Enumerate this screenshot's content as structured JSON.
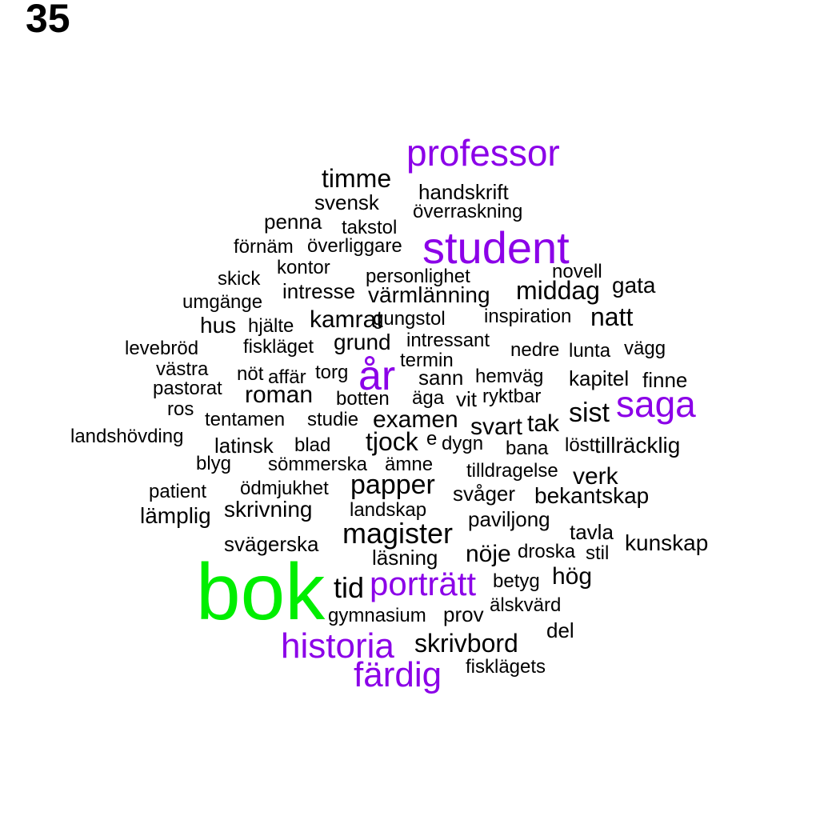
{
  "panel_number": "35",
  "colors": {
    "default": "#000000",
    "purple": "#8B00E8",
    "green": "#00EE00"
  },
  "words": [
    {
      "text": "professor",
      "size": 46,
      "color": "purple"
    },
    {
      "text": "timme",
      "size": 32,
      "color": "default"
    },
    {
      "text": "handskrift",
      "size": 26,
      "color": "default"
    },
    {
      "text": "svensk",
      "size": 26,
      "color": "default"
    },
    {
      "text": "överraskning",
      "size": 24,
      "color": "default"
    },
    {
      "text": "penna",
      "size": 26,
      "color": "default"
    },
    {
      "text": "takstol",
      "size": 24,
      "color": "default"
    },
    {
      "text": "student",
      "size": 56,
      "color": "purple"
    },
    {
      "text": "förnäm",
      "size": 24,
      "color": "default"
    },
    {
      "text": "överliggare",
      "size": 24,
      "color": "default"
    },
    {
      "text": "kontor",
      "size": 24,
      "color": "default"
    },
    {
      "text": "novell",
      "size": 24,
      "color": "default"
    },
    {
      "text": "skick",
      "size": 24,
      "color": "default"
    },
    {
      "text": "personlighet",
      "size": 24,
      "color": "default"
    },
    {
      "text": "intresse",
      "size": 26,
      "color": "default"
    },
    {
      "text": "middag",
      "size": 32,
      "color": "default"
    },
    {
      "text": "gata",
      "size": 28,
      "color": "default"
    },
    {
      "text": "umgänge",
      "size": 24,
      "color": "default"
    },
    {
      "text": "värmlänning",
      "size": 28,
      "color": "default"
    },
    {
      "text": "hus",
      "size": 28,
      "color": "default"
    },
    {
      "text": "hjälte",
      "size": 24,
      "color": "default"
    },
    {
      "text": "kamrat",
      "size": 30,
      "color": "default"
    },
    {
      "text": "gungstol",
      "size": 24,
      "color": "default"
    },
    {
      "text": "inspiration",
      "size": 24,
      "color": "default"
    },
    {
      "text": "natt",
      "size": 32,
      "color": "default"
    },
    {
      "text": "levebröd",
      "size": 24,
      "color": "default"
    },
    {
      "text": "fiskläget",
      "size": 24,
      "color": "default"
    },
    {
      "text": "grund",
      "size": 28,
      "color": "default"
    },
    {
      "text": "intressant",
      "size": 24,
      "color": "default"
    },
    {
      "text": "nedre",
      "size": 24,
      "color": "default"
    },
    {
      "text": "lunta",
      "size": 24,
      "color": "default"
    },
    {
      "text": "vägg",
      "size": 24,
      "color": "default"
    },
    {
      "text": "termin",
      "size": 24,
      "color": "default"
    },
    {
      "text": "år",
      "size": 52,
      "color": "purple"
    },
    {
      "text": "västra",
      "size": 24,
      "color": "default"
    },
    {
      "text": "nöt",
      "size": 24,
      "color": "default"
    },
    {
      "text": "affär",
      "size": 24,
      "color": "default"
    },
    {
      "text": "torg",
      "size": 24,
      "color": "default"
    },
    {
      "text": "sann",
      "size": 26,
      "color": "default"
    },
    {
      "text": "hemväg",
      "size": 24,
      "color": "default"
    },
    {
      "text": "kapitel",
      "size": 26,
      "color": "default"
    },
    {
      "text": "finne",
      "size": 26,
      "color": "default"
    },
    {
      "text": "pastorat",
      "size": 24,
      "color": "default"
    },
    {
      "text": "roman",
      "size": 30,
      "color": "default"
    },
    {
      "text": "botten",
      "size": 24,
      "color": "default"
    },
    {
      "text": "äga",
      "size": 24,
      "color": "default"
    },
    {
      "text": "vit",
      "size": 26,
      "color": "default"
    },
    {
      "text": "ryktbar",
      "size": 24,
      "color": "default"
    },
    {
      "text": "saga",
      "size": 46,
      "color": "purple"
    },
    {
      "text": "ros",
      "size": 24,
      "color": "default"
    },
    {
      "text": "sist",
      "size": 34,
      "color": "default"
    },
    {
      "text": "tentamen",
      "size": 24,
      "color": "default"
    },
    {
      "text": "studie",
      "size": 24,
      "color": "default"
    },
    {
      "text": "examen",
      "size": 30,
      "color": "default"
    },
    {
      "text": "svart",
      "size": 30,
      "color": "default"
    },
    {
      "text": "tak",
      "size": 30,
      "color": "default"
    },
    {
      "text": "landshövding",
      "size": 24,
      "color": "default"
    },
    {
      "text": "tjock",
      "size": 32,
      "color": "default"
    },
    {
      "text": "e",
      "size": 24,
      "color": "default"
    },
    {
      "text": "dygn",
      "size": 24,
      "color": "default"
    },
    {
      "text": "latinsk",
      "size": 26,
      "color": "default"
    },
    {
      "text": "blad",
      "size": 24,
      "color": "default"
    },
    {
      "text": "bana",
      "size": 24,
      "color": "default"
    },
    {
      "text": "löst",
      "size": 24,
      "color": "default"
    },
    {
      "text": "tillräcklig",
      "size": 28,
      "color": "default"
    },
    {
      "text": "blyg",
      "size": 24,
      "color": "default"
    },
    {
      "text": "sömmerska",
      "size": 24,
      "color": "default"
    },
    {
      "text": "ämne",
      "size": 24,
      "color": "default"
    },
    {
      "text": "tilldragelse",
      "size": 24,
      "color": "default"
    },
    {
      "text": "verk",
      "size": 30,
      "color": "default"
    },
    {
      "text": "patient",
      "size": 24,
      "color": "default"
    },
    {
      "text": "ödmjukhet",
      "size": 24,
      "color": "default"
    },
    {
      "text": "papper",
      "size": 34,
      "color": "default"
    },
    {
      "text": "svåger",
      "size": 26,
      "color": "default"
    },
    {
      "text": "bekantskap",
      "size": 28,
      "color": "default"
    },
    {
      "text": "lämplig",
      "size": 28,
      "color": "default"
    },
    {
      "text": "skrivning",
      "size": 28,
      "color": "default"
    },
    {
      "text": "landskap",
      "size": 24,
      "color": "default"
    },
    {
      "text": "paviljong",
      "size": 26,
      "color": "default"
    },
    {
      "text": "magister",
      "size": 36,
      "color": "default"
    },
    {
      "text": "tavla",
      "size": 26,
      "color": "default"
    },
    {
      "text": "svägerska",
      "size": 26,
      "color": "default"
    },
    {
      "text": "kunskap",
      "size": 28,
      "color": "default"
    },
    {
      "text": "läsning",
      "size": 26,
      "color": "default"
    },
    {
      "text": "nöje",
      "size": 30,
      "color": "default"
    },
    {
      "text": "droska",
      "size": 24,
      "color": "default"
    },
    {
      "text": "stil",
      "size": 24,
      "color": "default"
    },
    {
      "text": "bok",
      "size": 100,
      "color": "green"
    },
    {
      "text": "hög",
      "size": 30,
      "color": "default"
    },
    {
      "text": "tid",
      "size": 36,
      "color": "default"
    },
    {
      "text": "porträtt",
      "size": 42,
      "color": "purple"
    },
    {
      "text": "betyg",
      "size": 24,
      "color": "default"
    },
    {
      "text": "gymnasium",
      "size": 24,
      "color": "default"
    },
    {
      "text": "prov",
      "size": 26,
      "color": "default"
    },
    {
      "text": "älskvärd",
      "size": 24,
      "color": "default"
    },
    {
      "text": "del",
      "size": 26,
      "color": "default"
    },
    {
      "text": "historia",
      "size": 44,
      "color": "purple"
    },
    {
      "text": "skrivbord",
      "size": 32,
      "color": "default"
    },
    {
      "text": "fisklägets",
      "size": 24,
      "color": "default"
    },
    {
      "text": "färdig",
      "size": 44,
      "color": "purple"
    }
  ]
}
